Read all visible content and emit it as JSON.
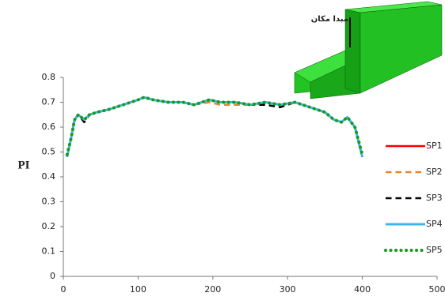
{
  "chart_data": {
    "type": "line",
    "y_label": "PI",
    "annotation": "مبدا مکان",
    "x": [
      5,
      10,
      15,
      20,
      28,
      35,
      45,
      60,
      80,
      100,
      108,
      120,
      140,
      160,
      175,
      195,
      210,
      230,
      250,
      270,
      290,
      310,
      330,
      350,
      362,
      372,
      380,
      390,
      400
    ],
    "series": [
      {
        "name": "SP1",
        "color": "#ff0000",
        "dash": "solid",
        "width": 2.5,
        "values": [
          0.48,
          0.55,
          0.63,
          0.65,
          0.63,
          0.65,
          0.66,
          0.67,
          0.69,
          0.71,
          0.72,
          0.71,
          0.7,
          0.7,
          0.69,
          0.71,
          0.7,
          0.7,
          0.69,
          0.7,
          0.69,
          0.7,
          0.68,
          0.66,
          0.63,
          0.62,
          0.64,
          0.6,
          0.48
        ]
      },
      {
        "name": "SP2",
        "color": "#e8852a",
        "dash": "dashed",
        "width": 2.5,
        "values": [
          0.48,
          0.55,
          0.63,
          0.65,
          0.63,
          0.65,
          0.66,
          0.67,
          0.69,
          0.71,
          0.72,
          0.71,
          0.7,
          0.7,
          0.69,
          0.7,
          0.69,
          0.69,
          0.69,
          0.7,
          0.69,
          0.7,
          0.68,
          0.66,
          0.63,
          0.62,
          0.64,
          0.6,
          0.48
        ]
      },
      {
        "name": "SP3",
        "color": "#000000",
        "dash": "dashed",
        "width": 2.5,
        "values": [
          0.48,
          0.55,
          0.63,
          0.65,
          0.62,
          0.65,
          0.66,
          0.67,
          0.69,
          0.71,
          0.72,
          0.71,
          0.7,
          0.7,
          0.69,
          0.71,
          0.7,
          0.7,
          0.69,
          0.69,
          0.68,
          0.7,
          0.68,
          0.66,
          0.63,
          0.62,
          0.64,
          0.6,
          0.48
        ]
      },
      {
        "name": "SP4",
        "color": "#3fb6e8",
        "dash": "solid",
        "width": 3,
        "values": [
          0.48,
          0.55,
          0.63,
          0.65,
          0.63,
          0.65,
          0.66,
          0.67,
          0.69,
          0.71,
          0.72,
          0.71,
          0.7,
          0.7,
          0.69,
          0.71,
          0.7,
          0.7,
          0.69,
          0.7,
          0.69,
          0.7,
          0.68,
          0.66,
          0.63,
          0.62,
          0.64,
          0.6,
          0.48
        ]
      },
      {
        "name": "SP5",
        "color": "#1a9a1a",
        "dash": "dotted",
        "width": 4,
        "values": [
          0.49,
          0.55,
          0.63,
          0.65,
          0.63,
          0.65,
          0.66,
          0.67,
          0.69,
          0.71,
          0.72,
          0.71,
          0.7,
          0.7,
          0.69,
          0.71,
          0.7,
          0.7,
          0.69,
          0.7,
          0.69,
          0.7,
          0.68,
          0.66,
          0.63,
          0.62,
          0.64,
          0.6,
          0.49
        ]
      }
    ],
    "xlim": [
      0,
      500
    ],
    "xticks": [
      0,
      100,
      200,
      300,
      400,
      500
    ],
    "ylim": [
      0,
      0.8
    ],
    "yticks": [
      0,
      0.1,
      0.2,
      0.3,
      0.4,
      0.5,
      0.6,
      0.7,
      0.8
    ],
    "grid": false,
    "legend": "right"
  }
}
